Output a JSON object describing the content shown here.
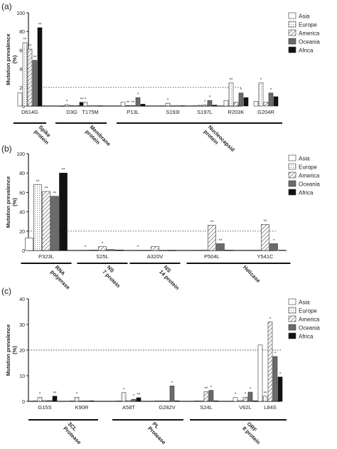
{
  "legend": [
    "Asia",
    "Europe",
    "America",
    "Oceania",
    "Africa"
  ],
  "chart_data": [
    {
      "type": "bar",
      "panel_label": "(a)",
      "ylabel": "Mutation prevalence (%)",
      "ylim": [
        0,
        100
      ],
      "yticks": [
        "0",
        "20",
        "40",
        "60",
        "80",
        "100"
      ],
      "reference_line": 20,
      "legend_position": "top-right",
      "categories": [
        "D614G",
        "D3G",
        "T175M",
        "P13L",
        "S193I",
        "S197L",
        "R203K",
        "G204R"
      ],
      "series": [
        {
          "name": "Asia",
          "values": [
            14,
            0,
            0.5,
            4,
            0.3,
            0.3,
            6,
            5
          ]
        },
        {
          "name": "Europe",
          "values": [
            68,
            1.5,
            4,
            0.5,
            3,
            0.8,
            25,
            25
          ]
        },
        {
          "name": "America",
          "values": [
            61,
            0.5,
            0.3,
            0.5,
            0.2,
            1,
            4,
            4
          ]
        },
        {
          "name": "Oceania",
          "values": [
            49,
            0.3,
            0.3,
            9,
            0.3,
            6,
            14,
            14
          ]
        },
        {
          "name": "Africa",
          "values": [
            84,
            4,
            0.3,
            2,
            0.3,
            1,
            9,
            10
          ]
        }
      ],
      "significance": [
        {
          "category": "D614G",
          "series": "Europe",
          "text": "**"
        },
        {
          "category": "D614G",
          "series": "America",
          "text": "**"
        },
        {
          "category": "D614G",
          "series": "Oceania",
          "text": "**"
        },
        {
          "category": "D614G",
          "series": "Africa",
          "text": "**"
        },
        {
          "category": "D3G",
          "series": "Europe",
          "text": "*"
        },
        {
          "category": "D3G",
          "series": "Africa",
          "text": "**"
        },
        {
          "category": "T175M",
          "series": "Europe",
          "text": "*"
        },
        {
          "category": "P13L",
          "series": "Europe",
          "text": "**"
        },
        {
          "category": "P13L",
          "series": "America",
          "text": "**"
        },
        {
          "category": "P13L",
          "series": "Oceania",
          "text": "*"
        },
        {
          "category": "S193I",
          "series": "Europe",
          "text": "*"
        },
        {
          "category": "S197L",
          "series": "America",
          "text": "*"
        },
        {
          "category": "S197L",
          "series": "Oceania",
          "text": "*"
        },
        {
          "category": "R203K",
          "series": "Europe",
          "text": "**"
        },
        {
          "category": "R203K",
          "series": "Oceania",
          "text": "*"
        },
        {
          "category": "G204R",
          "series": "Europe",
          "text": "*"
        },
        {
          "category": "G204R",
          "series": "Oceania",
          "text": "*"
        }
      ],
      "groups": [
        {
          "label": "Spike protein",
          "categories": [
            "D614G"
          ]
        },
        {
          "label": "Membrane protein",
          "categories": [
            "D3G",
            "T175M"
          ]
        },
        {
          "label": "Nucleocapsid protein",
          "categories": [
            "P13L",
            "S193I",
            "S197L",
            "R203K",
            "G204R"
          ]
        }
      ]
    },
    {
      "type": "bar",
      "panel_label": "(b)",
      "ylabel": "Mutation prevalence (%)",
      "ylim": [
        0,
        100
      ],
      "yticks": [
        "0",
        "20",
        "40",
        "60",
        "80",
        "100"
      ],
      "reference_line": 20,
      "legend_position": "top-right",
      "categories": [
        "P323L",
        "S25L",
        "A320V",
        "P504L",
        "Y541C"
      ],
      "series": [
        {
          "name": "Asia",
          "values": [
            13,
            0.3,
            0.2,
            0.2,
            0.2
          ]
        },
        {
          "name": "Europe",
          "values": [
            68,
            0.5,
            0.2,
            0.3,
            0.3
          ]
        },
        {
          "name": "America",
          "values": [
            61,
            4,
            4,
            26,
            27
          ]
        },
        {
          "name": "Oceania",
          "values": [
            56,
            1,
            0.2,
            7,
            7
          ]
        },
        {
          "name": "Africa",
          "values": [
            80,
            0.5,
            0.2,
            0.3,
            0.3
          ]
        }
      ],
      "significance": [
        {
          "category": "P323L",
          "series": "Europe",
          "text": "**"
        },
        {
          "category": "P323L",
          "series": "America",
          "text": "**"
        },
        {
          "category": "P323L",
          "series": "Oceania",
          "text": "**"
        },
        {
          "category": "P323L",
          "series": "Africa",
          "text": "**"
        },
        {
          "category": "S25L",
          "series": "Asia",
          "text": "*"
        },
        {
          "category": "S25L",
          "series": "America",
          "text": "*"
        },
        {
          "category": "A320V",
          "series": "Asia",
          "text": "*"
        },
        {
          "category": "P504L",
          "series": "America",
          "text": "**"
        },
        {
          "category": "P504L",
          "series": "Oceania",
          "text": "**"
        },
        {
          "category": "Y541C",
          "series": "America",
          "text": "**"
        },
        {
          "category": "Y541C",
          "series": "Oceania",
          "text": "*"
        }
      ],
      "groups": [
        {
          "label": "RNA polyerase",
          "categories": [
            "P323L"
          ]
        },
        {
          "label": "NS 7 protein",
          "categories": [
            "S25L"
          ]
        },
        {
          "label": "NS 14 protein",
          "categories": [
            "A320V"
          ]
        },
        {
          "label": "Helicase",
          "categories": [
            "P504L",
            "Y541C"
          ]
        }
      ]
    },
    {
      "type": "bar",
      "panel_label": "(c)",
      "ylabel": "Mutation prevalence (%)",
      "ylim": [
        0,
        40
      ],
      "yticks": [
        "0",
        "10",
        "20",
        "30",
        "40"
      ],
      "reference_line": 20,
      "legend_position": "top-right",
      "categories": [
        "G15S",
        "K90R",
        "A58T",
        "G282V",
        "S24L",
        "V62L",
        "L84S"
      ],
      "series": [
        {
          "name": "Asia",
          "values": [
            0.2,
            0.2,
            0.2,
            0.2,
            0.2,
            1.5,
            22
          ]
        },
        {
          "name": "Europe",
          "values": [
            1.6,
            1.6,
            3.4,
            0.2,
            0.2,
            0.3,
            2
          ]
        },
        {
          "name": "America",
          "values": [
            0.3,
            0.2,
            0.3,
            0.2,
            3.8,
            1.6,
            31
          ]
        },
        {
          "name": "Oceania",
          "values": [
            0.3,
            0.2,
            0.8,
            6,
            4.3,
            3.6,
            17.5
          ]
        },
        {
          "name": "Africa",
          "values": [
            2,
            0.2,
            1.4,
            0.2,
            0.2,
            0.2,
            9.5
          ]
        }
      ],
      "significance": [
        {
          "category": "G15S",
          "series": "Europe",
          "text": "*"
        },
        {
          "category": "G15S",
          "series": "Africa",
          "text": "**"
        },
        {
          "category": "K90R",
          "series": "Europe",
          "text": "*"
        },
        {
          "category": "A58T",
          "series": "Europe",
          "text": "*"
        },
        {
          "category": "A58T",
          "series": "Oceania",
          "text": "*"
        },
        {
          "category": "A58T",
          "series": "Africa",
          "text": "**"
        },
        {
          "category": "G282V",
          "series": "Oceania",
          "text": "*"
        },
        {
          "category": "S24L",
          "series": "America",
          "text": "**"
        },
        {
          "category": "S24L",
          "series": "Oceania",
          "text": "*"
        },
        {
          "category": "V62L",
          "series": "Asia",
          "text": "*"
        },
        {
          "category": "V62L",
          "series": "America",
          "text": "*"
        },
        {
          "category": "V62L",
          "series": "Oceania",
          "text": "*"
        },
        {
          "category": "L84S",
          "series": "Europe",
          "text": "**"
        },
        {
          "category": "L84S",
          "series": "America",
          "text": "*"
        },
        {
          "category": "L84S",
          "series": "Oceania",
          "text": "*"
        },
        {
          "category": "L84S",
          "series": "Africa",
          "text": "*"
        }
      ],
      "groups": [
        {
          "label": "3CL Protease",
          "categories": [
            "G15S",
            "K90R"
          ]
        },
        {
          "label": "PL Protease",
          "categories": [
            "A58T",
            "G282V"
          ]
        },
        {
          "label": "ORF 8 protein",
          "categories": [
            "S24L",
            "V62L",
            "L84S"
          ]
        }
      ]
    }
  ]
}
